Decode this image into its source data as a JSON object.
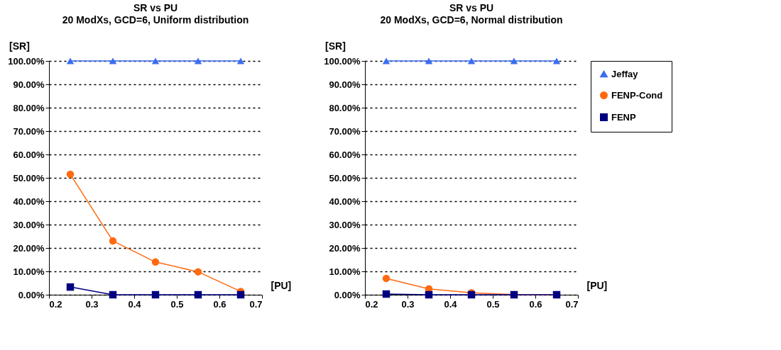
{
  "chart_data": [
    {
      "type": "line",
      "title": "SR  vs  PU",
      "subtitle": "20 ModXs, GCD=6, Uniform distribution",
      "xlabel": "[PU]",
      "ylabel": "[SR]",
      "x": [
        0.25,
        0.35,
        0.45,
        0.55,
        0.65
      ],
      "series": [
        {
          "color": "#3a6df0",
          "marker": "triangle",
          "values": [
            100,
            100,
            100,
            100,
            100
          ]
        },
        {
          "color": "#ff6a10",
          "marker": "circle",
          "values": [
            51.5,
            23,
            14,
            9.8,
            1.4
          ]
        },
        {
          "color": "#000080",
          "marker": "square",
          "values": [
            3.3,
            0,
            0,
            0,
            0
          ]
        }
      ],
      "xlim": [
        0.2,
        0.7
      ],
      "xticks": [
        0.2,
        0.3,
        0.4,
        0.5,
        0.6,
        0.7
      ],
      "ylim": [
        0,
        100
      ],
      "yticks": [
        {
          "value": 0,
          "label": "0.00%"
        },
        {
          "value": 10,
          "label": "10.00%"
        },
        {
          "value": 20,
          "label": "20.00%"
        },
        {
          "value": 30,
          "label": "30.00%"
        },
        {
          "value": 40,
          "label": "40.00%"
        },
        {
          "value": 50,
          "label": "50.00%"
        },
        {
          "value": 60,
          "label": "60.00%"
        },
        {
          "value": 70,
          "label": "70.00%"
        },
        {
          "value": 80,
          "label": "80.00%"
        },
        {
          "value": 90,
          "label": "90.00%"
        },
        {
          "value": 100,
          "label": "100.00%"
        }
      ],
      "grid": "y",
      "legend": false
    },
    {
      "type": "line",
      "title": "SR  vs  PU",
      "subtitle": "20 ModXs, GCD=6, Normal distribution",
      "xlabel": "[PU]",
      "ylabel": "[SR]",
      "x": [
        0.25,
        0.35,
        0.45,
        0.55,
        0.65
      ],
      "series": [
        {
          "name": "Jeffay",
          "color": "#3a6df0",
          "marker": "triangle",
          "values": [
            100,
            100,
            100,
            100,
            100
          ]
        },
        {
          "name": "FENP-Cond",
          "color": "#ff6a10",
          "marker": "circle",
          "values": [
            7,
            2.5,
            0.8,
            0.1,
            0
          ]
        },
        {
          "name": "FENP",
          "color": "#000080",
          "marker": "square",
          "values": [
            0.3,
            0,
            0,
            0,
            0
          ]
        }
      ],
      "xlim": [
        0.2,
        0.7
      ],
      "xticks": [
        0.2,
        0.3,
        0.4,
        0.5,
        0.6,
        0.7
      ],
      "ylim": [
        0,
        100
      ],
      "yticks": [
        {
          "value": 0,
          "label": "0.00%"
        },
        {
          "value": 10,
          "label": "10.00%"
        },
        {
          "value": 20,
          "label": "20.00%"
        },
        {
          "value": 30,
          "label": "30.00%"
        },
        {
          "value": 40,
          "label": "40.00%"
        },
        {
          "value": 50,
          "label": "50.00%"
        },
        {
          "value": 60,
          "label": "60.00%"
        },
        {
          "value": 70,
          "label": "70.00%"
        },
        {
          "value": 80,
          "label": "80.00%"
        },
        {
          "value": 90,
          "label": "90.00%"
        },
        {
          "value": 100,
          "label": "100.00%"
        }
      ],
      "grid": "y",
      "legend": "right"
    }
  ]
}
